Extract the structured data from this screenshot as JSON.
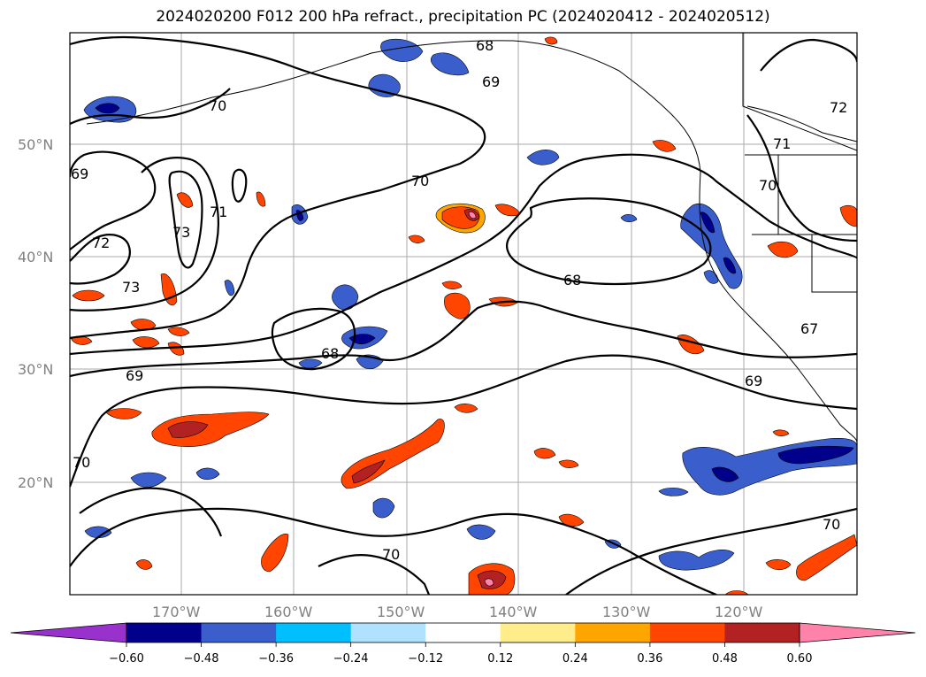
{
  "title": "2024020200 F012 200 hPa refract., precipitation PC (2024020412 - 2024020512)",
  "map": {
    "lat_labels": [
      "50°N",
      "40°N",
      "30°N",
      "20°N"
    ],
    "lon_labels": [
      "170°W",
      "160°W",
      "150°W",
      "140°W",
      "130°W",
      "120°W"
    ],
    "contour_labels": [
      "68",
      "69",
      "70",
      "70",
      "71",
      "72",
      "72",
      "73",
      "73",
      "71",
      "70",
      "69",
      "69",
      "68",
      "68",
      "67",
      "69",
      "70",
      "70",
      "70"
    ]
  },
  "colorbar": {
    "tick_labels": [
      "−0.60",
      "−0.48",
      "−0.36",
      "−0.24",
      "−0.12",
      "0.12",
      "0.24",
      "0.36",
      "0.48",
      "0.60"
    ],
    "colors": {
      "under": "#9932cc",
      "bins": [
        "#00008b",
        "#3a5fcd",
        "#00bfff",
        "#b0e2ff",
        "#ffffff",
        "#ffec8b",
        "#ffa500",
        "#ff4500",
        "#b22222"
      ],
      "over": "#ff82ab"
    }
  },
  "palette": {
    "dark_blue": "#00008b",
    "blue": "#3a5fcd",
    "cyan": "#00bfff",
    "light_blue": "#b0e2ff",
    "yellow": "#ffec8b",
    "orange": "#ffa500",
    "red_orange": "#ff4500",
    "firebrick": "#b22222",
    "pink": "#ff82ab",
    "contour": "#000000",
    "grid": "#aaaaaa"
  }
}
